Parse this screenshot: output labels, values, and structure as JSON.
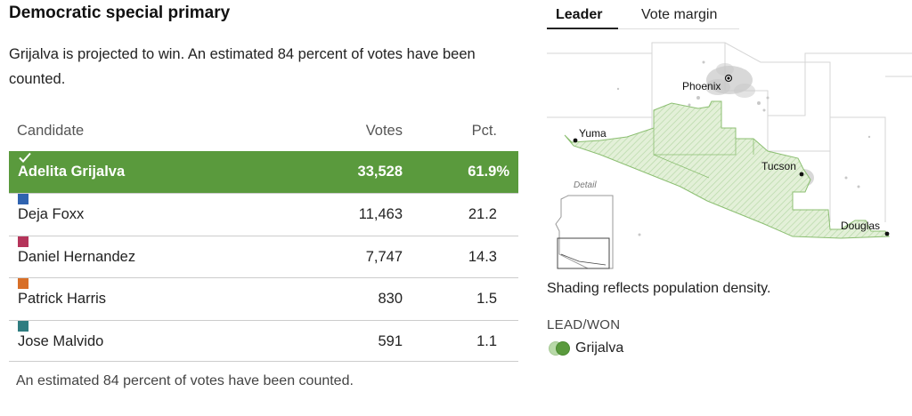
{
  "results": {
    "title": "Democratic special primary",
    "summary": "Grijalva is projected to win. An estimated 84 percent of votes have been counted.",
    "headers": {
      "candidate": "Candidate",
      "votes": "Votes",
      "pct": "Pct."
    },
    "rows": [
      {
        "name": "Adelita Grijalva",
        "votes": "33,528",
        "pct": "61.9%",
        "color": "#5a9a3d",
        "winner": true,
        "icon": "check-icon"
      },
      {
        "name": "Deja Foxx",
        "votes": "11,463",
        "pct": "21.2",
        "color": "#2f63b0"
      },
      {
        "name": "Daniel Hernandez",
        "votes": "7,747",
        "pct": "14.3",
        "color": "#b5345a"
      },
      {
        "name": "Patrick Harris",
        "votes": "830",
        "pct": "1.5",
        "color": "#d86f28"
      },
      {
        "name": "Jose Malvido",
        "votes": "591",
        "pct": "1.1",
        "color": "#2f7c80"
      }
    ],
    "footnote": "An estimated 84 percent of votes have been counted."
  },
  "map": {
    "tabs": [
      {
        "label": "Leader",
        "active": true
      },
      {
        "label": "Vote margin",
        "active": false
      }
    ],
    "cities": [
      "Phoenix",
      "Yuma",
      "Tucson",
      "Douglas"
    ],
    "detail_label": "Detail",
    "shading_note": "Shading reflects population density.",
    "legend_title": "LEAD/WON",
    "legend_item": "Grijalva",
    "colors": {
      "lead": "#b8d9a8",
      "won": "#5a9a3d",
      "district_fill": "#e3f0d8",
      "district_stroke": "#8cbf72"
    }
  }
}
